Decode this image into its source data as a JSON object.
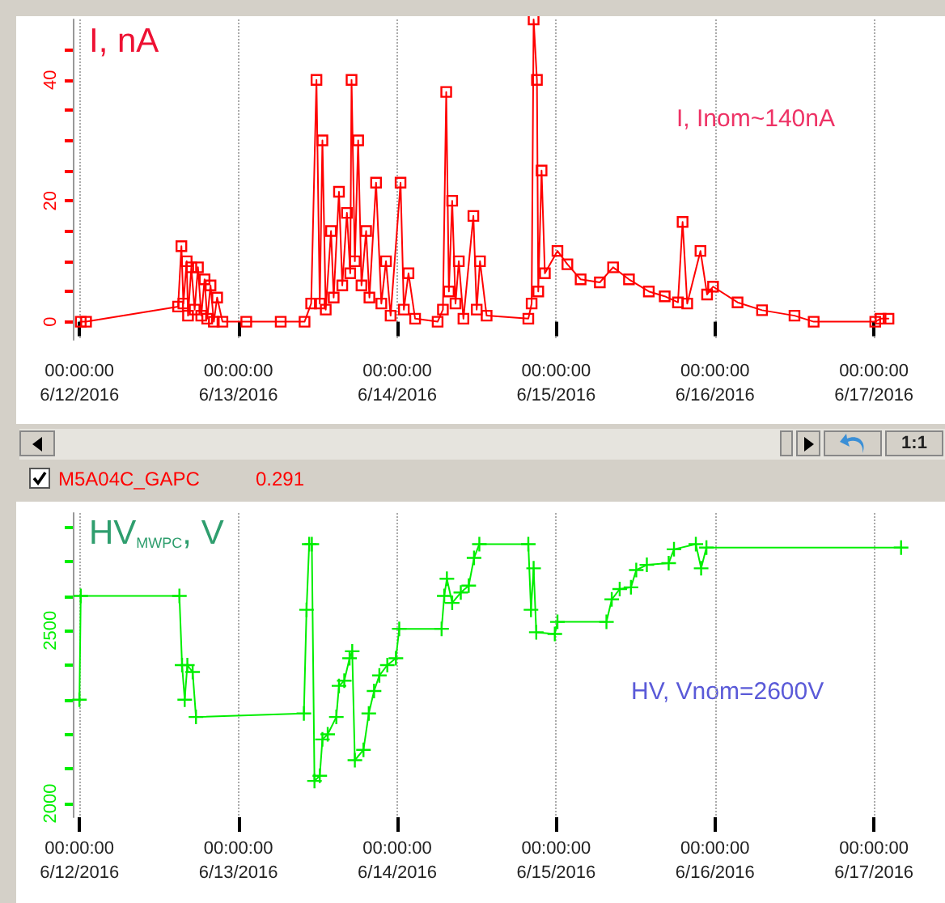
{
  "chart_data": [
    {
      "type": "line",
      "title": "I, nA",
      "color": "#ff0000",
      "marker": "square",
      "grid": "x",
      "x": [
        "2016-06-12T00:12",
        "2016-06-12T01:00",
        "2016-06-12T14:54",
        "2016-06-12T15:24",
        "2016-06-12T15:42",
        "2016-06-12T16:12",
        "2016-06-12T16:24",
        "2016-06-12T16:54",
        "2016-06-12T17:24",
        "2016-06-12T17:54",
        "2016-06-12T18:24",
        "2016-06-12T18:54",
        "2016-06-12T19:18",
        "2016-06-12T19:48",
        "2016-06-12T20:18",
        "2016-06-12T20:48",
        "2016-06-12T21:36",
        "2016-06-13T01:12",
        "2016-06-13T06:24",
        "2016-06-13T10:00",
        "2016-06-13T11:00",
        "2016-06-13T11:48",
        "2016-06-13T12:18",
        "2016-06-13T12:42",
        "2016-06-13T13:12",
        "2016-06-13T14:00",
        "2016-06-13T14:24",
        "2016-06-13T15:12",
        "2016-06-13T15:42",
        "2016-06-13T16:24",
        "2016-06-13T16:54",
        "2016-06-13T17:06",
        "2016-06-13T17:36",
        "2016-06-13T18:06",
        "2016-06-13T18:36",
        "2016-06-13T19:18",
        "2016-06-13T19:48",
        "2016-06-13T20:48",
        "2016-06-13T21:36",
        "2016-06-13T22:18",
        "2016-06-13T23:00",
        "2016-06-14T00:30",
        "2016-06-14T01:00",
        "2016-06-14T01:42",
        "2016-06-14T02:42",
        "2016-06-14T06:06",
        "2016-06-14T06:54",
        "2016-06-14T07:24",
        "2016-06-14T07:48",
        "2016-06-14T08:18",
        "2016-06-14T08:48",
        "2016-06-14T09:18",
        "2016-06-14T10:00",
        "2016-06-14T11:30",
        "2016-06-14T12:00",
        "2016-06-14T12:30",
        "2016-06-14T13:30",
        "2016-06-14T19:48",
        "2016-06-14T20:18",
        "2016-06-14T20:36",
        "2016-06-14T21:06",
        "2016-06-14T21:18",
        "2016-06-14T21:48",
        "2016-06-14T22:18",
        "2016-06-15T00:12",
        "2016-06-15T01:42",
        "2016-06-15T03:42",
        "2016-06-15T06:36",
        "2016-06-15T08:36",
        "2016-06-15T11:00",
        "2016-06-15T14:00",
        "2016-06-15T16:24",
        "2016-06-15T18:24",
        "2016-06-15T19:06",
        "2016-06-15T19:48",
        "2016-06-15T21:48",
        "2016-06-15T22:48",
        "2016-06-15T23:42",
        "2016-06-16T03:24",
        "2016-06-16T07:06",
        "2016-06-16T12:00",
        "2016-06-16T14:54",
        "2016-06-17T00:12",
        "2016-06-17T01:00",
        "2016-06-17T02:12"
      ],
      "values": [
        0,
        0,
        2.5,
        12.5,
        3,
        10,
        1,
        9,
        2,
        9,
        1,
        7,
        0.5,
        6,
        0,
        4,
        0,
        0,
        0,
        0,
        3,
        40,
        3,
        30,
        2,
        15,
        4,
        21.5,
        6,
        18,
        8,
        40,
        10,
        30,
        6,
        15,
        4,
        23,
        3,
        10,
        1,
        23,
        2,
        8,
        0.5,
        0,
        2,
        38,
        5,
        20,
        3,
        10,
        0.5,
        17.5,
        2,
        10,
        1,
        0.5,
        3,
        50,
        40,
        5,
        25,
        8,
        11.7,
        9.5,
        7,
        6.5,
        9,
        7,
        5,
        4.2,
        3.2,
        16.5,
        3,
        11.7,
        4.5,
        5.8,
        3.2,
        1.9,
        1,
        0,
        0,
        0.5,
        0.5
      ],
      "xlim": [
        "2016-06-11T23:00",
        "2016-06-17T10:00"
      ],
      "xticks": [
        {
          "value": "2016-06-12T00:00",
          "label": "00:00:00\n6/12/2016"
        },
        {
          "value": "2016-06-13T00:00",
          "label": "00:00:00\n6/13/2016"
        },
        {
          "value": "2016-06-14T00:00",
          "label": "00:00:00\n6/14/2016"
        },
        {
          "value": "2016-06-15T00:00",
          "label": "00:00:00\n6/15/2016"
        },
        {
          "value": "2016-06-16T00:00",
          "label": "00:00:00\n6/16/2016"
        },
        {
          "value": "2016-06-17T00:00",
          "label": "00:00:00\n6/17/2016"
        }
      ],
      "ylim": [
        -3,
        50
      ],
      "yticks": [
        0,
        {
          "value": 5,
          "label": null
        },
        {
          "value": 10,
          "label": null
        },
        {
          "value": 15,
          "label": null
        },
        20,
        {
          "value": 25,
          "label": null
        },
        {
          "value": 30,
          "label": null
        },
        {
          "value": 35,
          "label": null
        },
        40,
        {
          "value": 45,
          "label": null
        }
      ],
      "annotations": [
        "I, Inom~140nA",
        "M5A04C_GAPC",
        "0.291",
        "1:1"
      ]
    },
    {
      "type": "line",
      "title": "HV$_{MWPC}$, V",
      "color": "#00ee00",
      "marker": "cross",
      "grid": "x",
      "x": [
        "2016-06-12T00:00",
        "2016-06-12T00:12",
        "2016-06-12T15:06",
        "2016-06-12T15:30",
        "2016-06-12T15:54",
        "2016-06-12T16:18",
        "2016-06-12T17:06",
        "2016-06-12T17:36",
        "2016-06-13T09:54",
        "2016-06-13T10:18",
        "2016-06-13T10:42",
        "2016-06-13T11:06",
        "2016-06-13T11:30",
        "2016-06-13T12:18",
        "2016-06-13T12:42",
        "2016-06-13T13:30",
        "2016-06-13T14:48",
        "2016-06-13T15:12",
        "2016-06-13T16:00",
        "2016-06-13T16:48",
        "2016-06-13T17:12",
        "2016-06-13T17:36",
        "2016-06-13T18:54",
        "2016-06-13T19:42",
        "2016-06-13T20:30",
        "2016-06-13T21:18",
        "2016-06-13T22:30",
        "2016-06-13T23:48",
        "2016-06-14T00:18",
        "2016-06-14T06:42",
        "2016-06-14T07:06",
        "2016-06-14T07:30",
        "2016-06-14T08:18",
        "2016-06-14T09:36",
        "2016-06-14T10:48",
        "2016-06-14T11:36",
        "2016-06-14T12:24",
        "2016-06-14T19:48",
        "2016-06-14T20:12",
        "2016-06-14T20:36",
        "2016-06-14T21:00",
        "2016-06-14T23:48",
        "2016-06-15T00:12",
        "2016-06-15T07:36",
        "2016-06-15T08:24",
        "2016-06-15T09:36",
        "2016-06-15T11:18",
        "2016-06-15T12:06",
        "2016-06-15T13:42",
        "2016-06-15T17:00",
        "2016-06-15T17:48",
        "2016-06-15T21:06",
        "2016-06-15T21:54",
        "2016-06-15T22:42",
        "2016-06-17T04:06"
      ],
      "values": [
        2300,
        2600,
        2600,
        2400,
        2300,
        2400,
        2380,
        2250,
        2260,
        2560,
        2750,
        2750,
        2065,
        2080,
        2185,
        2200,
        2250,
        2340,
        2355,
        2420,
        2440,
        2125,
        2155,
        2260,
        2325,
        2370,
        2400,
        2420,
        2505,
        2505,
        2600,
        2650,
        2580,
        2610,
        2630,
        2710,
        2750,
        2750,
        2560,
        2680,
        2495,
        2490,
        2525,
        2525,
        2590,
        2620,
        2625,
        2675,
        2690,
        2695,
        2735,
        2750,
        2680,
        2740,
        2740
      ],
      "xlim": [
        "2016-06-11T23:00",
        "2016-06-17T10:00"
      ],
      "xticks": [
        {
          "value": "2016-06-12T00:00",
          "label": "00:00:00\n6/12/2016"
        },
        {
          "value": "2016-06-13T00:00",
          "label": "00:00:00\n6/13/2016"
        },
        {
          "value": "2016-06-14T00:00",
          "label": "00:00:00\n6/14/2016"
        },
        {
          "value": "2016-06-15T00:00",
          "label": "00:00:00\n6/15/2016"
        },
        {
          "value": "2016-06-16T00:00",
          "label": "00:00:00\n6/16/2016"
        },
        {
          "value": "2016-06-17T00:00",
          "label": "00:00:00\n6/17/2016"
        }
      ],
      "ylim": [
        1960,
        2840
      ],
      "yticks": [
        2000,
        {
          "value": 2100,
          "label": null
        },
        {
          "value": 2200,
          "label": null
        },
        {
          "value": 2300,
          "label": null
        },
        {
          "value": 2400,
          "label": null
        },
        2500,
        {
          "value": 2600,
          "label": null
        },
        {
          "value": 2700,
          "label": null
        },
        {
          "value": 2800,
          "label": null
        }
      ],
      "annotations": [
        "HV, Vnom=2600V"
      ]
    }
  ]
}
